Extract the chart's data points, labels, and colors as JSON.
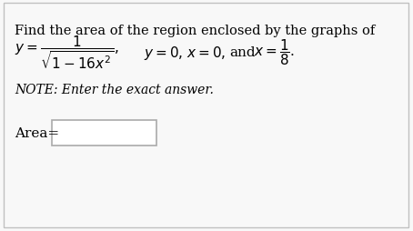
{
  "background_color": "#f8f8f8",
  "border_color": "#c0c0c0",
  "title_line": "Find the area of the region enclosed by the graphs of",
  "note_text": "NOTE: Enter the exact answer.",
  "area_label": "Area=",
  "title_fontsize": 10.5,
  "eq_fontsize": 11,
  "note_fontsize": 10,
  "area_fontsize": 11
}
